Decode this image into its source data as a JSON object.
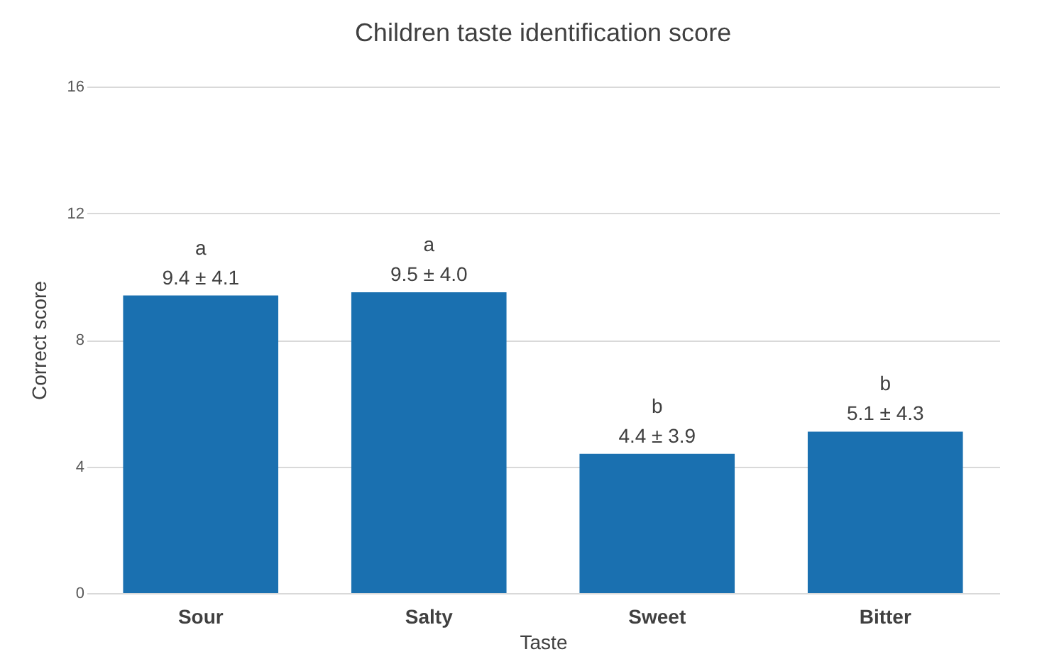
{
  "chart_data": {
    "type": "bar",
    "title": "Children taste identification score",
    "xlabel": "Taste",
    "ylabel": "Correct score",
    "categories": [
      "Sour",
      "Salty",
      "Sweet",
      "Bitter"
    ],
    "values": [
      9.4,
      9.5,
      4.4,
      5.1
    ],
    "color": "#1a70b0",
    "value_labels": [
      "9.4 ± 4.1",
      "9.5 ± 4.0",
      "4.4 ± 3.9",
      "5.1 ± 4.3"
    ],
    "annotations": [
      {
        "text": "a",
        "x": "Sour",
        "y": 9.4
      },
      {
        "text": "a",
        "x": "Salty",
        "y": 9.5
      },
      {
        "text": "b",
        "x": "Sweet",
        "y": 4.4
      },
      {
        "text": "b",
        "x": "Bitter",
        "y": 5.1
      }
    ],
    "ylim": [
      0,
      16
    ],
    "yticks": [
      0,
      4,
      8,
      12,
      16
    ],
    "grid": "y"
  }
}
